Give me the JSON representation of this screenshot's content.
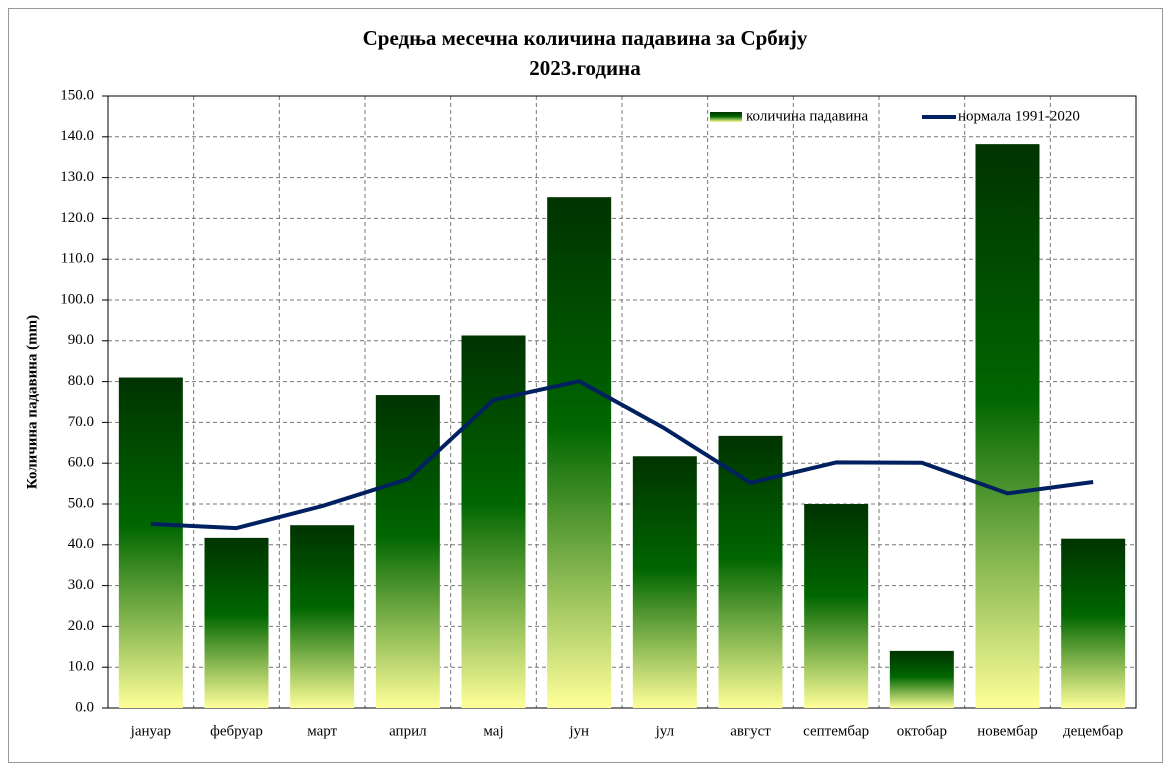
{
  "chart_data": {
    "type": "bar",
    "title": "Средња месечна количина падавина за Србију",
    "subtitle": "2023.година",
    "y_label": "Количина падавина (mm)",
    "categories": [
      "јануар",
      "фебруар",
      "март",
      "април",
      "мај",
      "јун",
      "јул",
      "август",
      "септембар",
      "октобар",
      "новембар",
      "децембар"
    ],
    "series": [
      {
        "name": "количина падавина",
        "type": "bar",
        "color": "#006600",
        "values": [
          81.0,
          41.7,
          44.8,
          76.7,
          91.3,
          125.2,
          61.7,
          66.7,
          50.0,
          14.0,
          138.2,
          41.5
        ]
      },
      {
        "name": "нормала 1991-2020",
        "type": "line",
        "color": "#002060",
        "values": [
          45.1,
          44.1,
          49.5,
          56.1,
          75.5,
          80.1,
          68.5,
          55.2,
          60.2,
          60.1,
          52.6,
          55.4
        ]
      }
    ],
    "ylim": [
      0,
      150
    ],
    "yticks": [
      {
        "value": 0,
        "label": "0.0"
      },
      {
        "value": 10,
        "label": "10.0"
      },
      {
        "value": 20,
        "label": "20.0"
      },
      {
        "value": 30,
        "label": "30.0"
      },
      {
        "value": 40,
        "label": "40.0"
      },
      {
        "value": 50,
        "label": "50.0"
      },
      {
        "value": 60,
        "label": "60.0"
      },
      {
        "value": 70,
        "label": "70.0"
      },
      {
        "value": 80,
        "label": "80.0"
      },
      {
        "value": 90,
        "label": "90.0"
      },
      {
        "value": 100,
        "label": "100.0"
      },
      {
        "value": 110,
        "label": "110.0"
      },
      {
        "value": 120,
        "label": "120.0"
      },
      {
        "value": 130,
        "label": "130.0"
      },
      {
        "value": 140,
        "label": "140.0"
      },
      {
        "value": 150,
        "label": "150.0"
      }
    ],
    "grid": true,
    "legend": "top-right"
  }
}
